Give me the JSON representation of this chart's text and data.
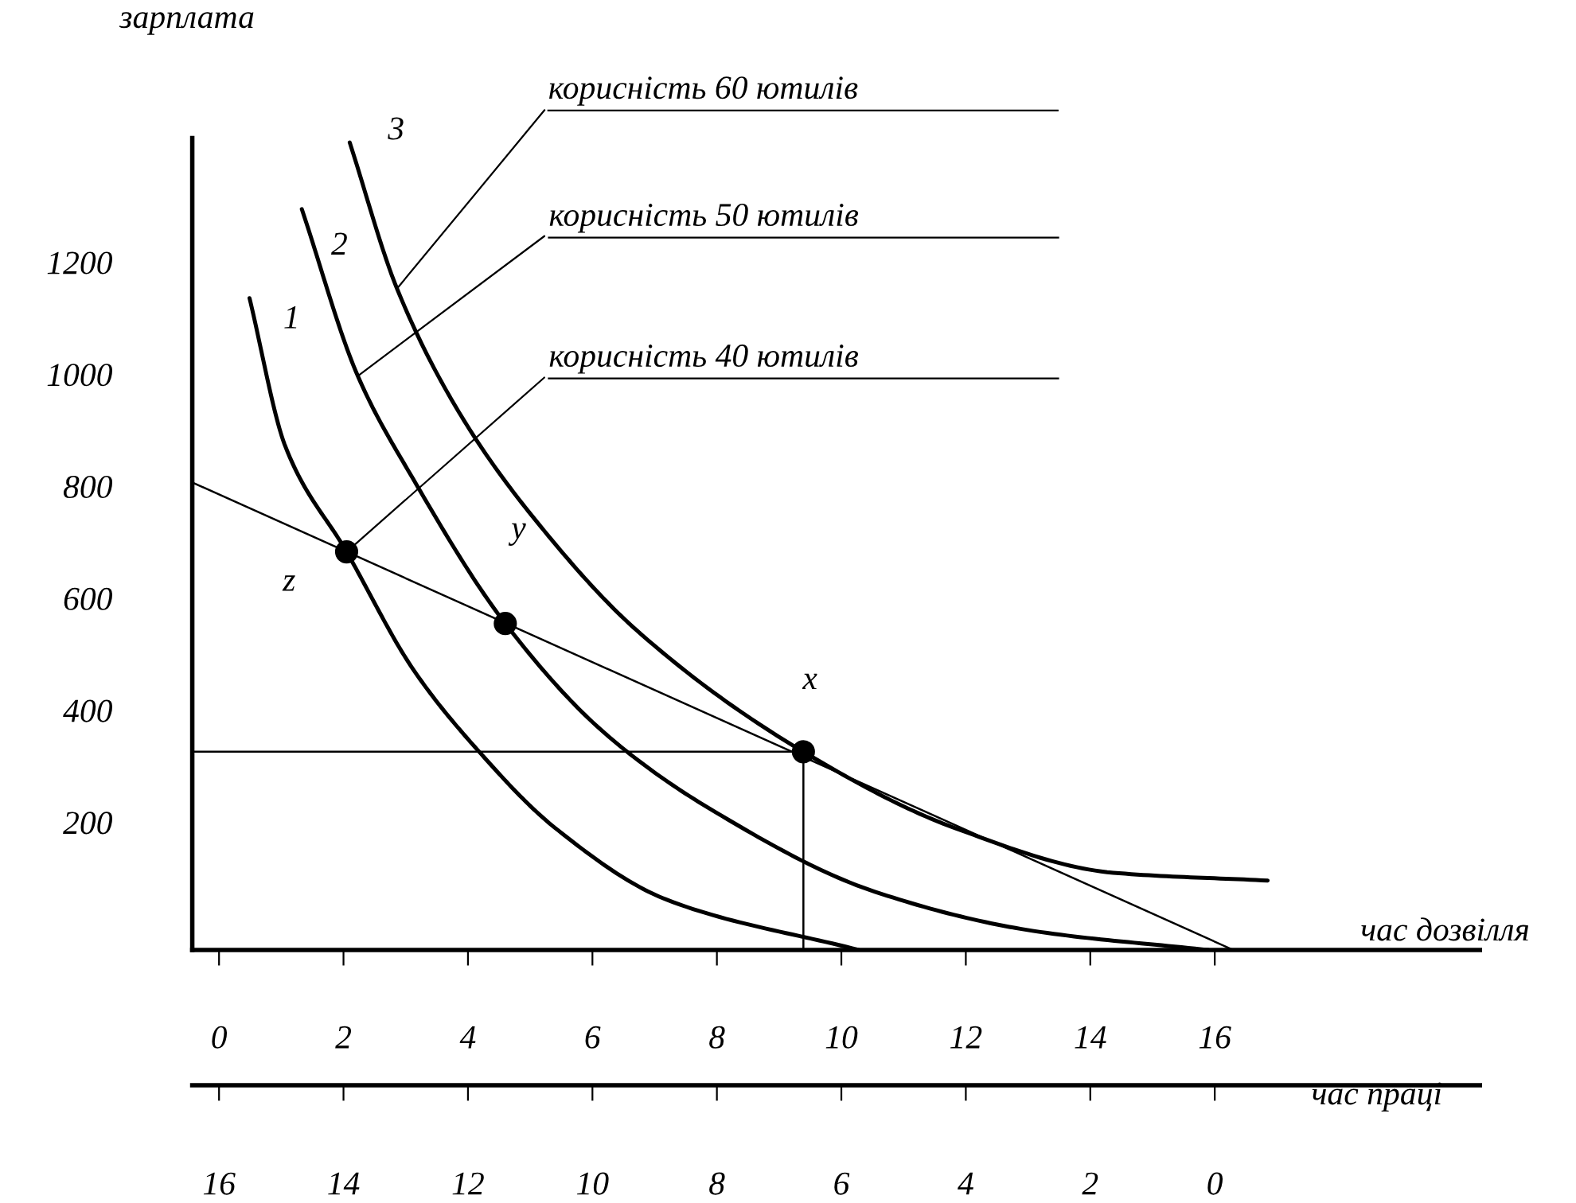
{
  "chart_data": {
    "type": "line",
    "ylabel": "зарплата",
    "xlabel": "час дозвілля",
    "x2label": "час праці",
    "xlim": [
      -0.43,
      20.26
    ],
    "ylim": [
      -28,
      1422
    ],
    "xticks": [
      0,
      2,
      4,
      6,
      8,
      10,
      12,
      14,
      16
    ],
    "yticks": [
      200,
      400,
      600,
      800,
      1000,
      1200
    ],
    "x2lim": [
      16.43,
      -4.26
    ],
    "x2ticks": [
      16,
      14,
      12,
      10,
      8,
      6,
      4,
      2,
      0
    ],
    "grid": false,
    "series": [
      {
        "color": "#000000",
        "x": [
          0.49,
          1.07,
          2.05,
          3.12,
          4.14,
          5.4,
          7.19,
          10.28
        ],
        "values": [
          1136,
          870,
          683,
          473,
          331,
          190,
          62,
          -28
        ]
      },
      {
        "color": "#000000",
        "x": [
          1.33,
          2.23,
          3.12,
          4.6,
          6.19,
          7.98,
          10.54,
          13.09,
          15.9
        ],
        "values": [
          1295,
          997,
          813,
          555,
          360,
          218,
          76,
          6,
          -28
        ]
      },
      {
        "color": "#000000",
        "x": [
          2.1,
          2.86,
          3.89,
          5.17,
          6.7,
          9.39,
          11.82,
          14.37,
          16.85
        ],
        "values": [
          1414,
          1153,
          926,
          728,
          544,
          326,
          190,
          110,
          96
        ]
      },
      {
        "color": "#000000",
        "x": [
          -0.43,
          16.3
        ],
        "values": [
          807,
          -28
        ]
      },
      {
        "color": "#000000",
        "x": [
          -0.43,
          9.39
        ],
        "values": [
          326,
          326
        ]
      },
      {
        "color": "#000000",
        "x": [
          9.39,
          9.39
        ],
        "values": [
          -28,
          326
        ]
      },
      {
        "type": "scatter",
        "color": "#000000",
        "marker": "circle",
        "x": [
          2.05,
          4.6,
          9.39
        ],
        "values": [
          683,
          555,
          326
        ]
      }
    ],
    "annotations": [
      {
        "text": "1",
        "x": 0.49,
        "y": 1136
      },
      {
        "text": "2",
        "x": 1.33,
        "y": 1295
      },
      {
        "text": "3",
        "x": 2.1,
        "y": 1414
      },
      {
        "text": "z",
        "x": 2.05,
        "y": 683
      },
      {
        "text": "y",
        "x": 4.6,
        "y": 555
      },
      {
        "text": "x",
        "x": 9.39,
        "y": 326
      },
      {
        "text": "корисність 60 ютилів",
        "x": 2.86,
        "y": 1153
      },
      {
        "text": "корисність 50 ютилів",
        "x": 2.23,
        "y": 997
      },
      {
        "text": "корисність 40 ютилів",
        "x": 2.05,
        "y": 683
      }
    ]
  }
}
